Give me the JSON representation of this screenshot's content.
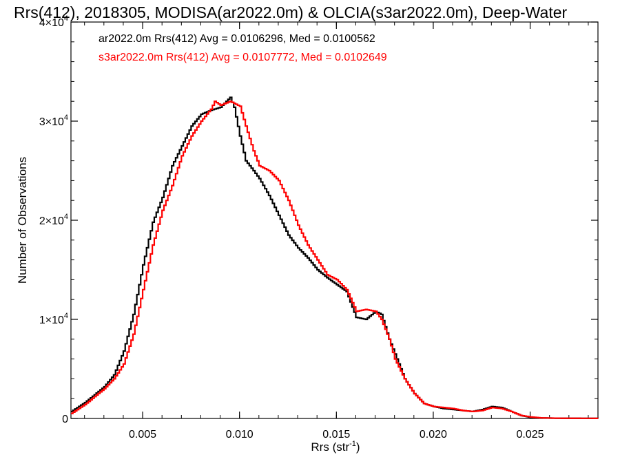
{
  "chart_data": {
    "type": "line",
    "title": "Rrs(412), 2018305, MODISA(ar2022.0m) & OLCIA(s3ar2022.0m), Deep-Water",
    "xlabel": "Rrs (str",
    "xlabel_sup": "-1",
    "xlabel_close": ")",
    "ylabel": "Number of Observations",
    "xlim": [
      0.0013,
      0.0285
    ],
    "ylim": [
      0,
      40000
    ],
    "grid": false,
    "legend_position": "top-left",
    "x_ticks": [
      {
        "value": 0.005,
        "label": "0.005"
      },
      {
        "value": 0.01,
        "label": "0.010"
      },
      {
        "value": 0.015,
        "label": "0.015"
      },
      {
        "value": 0.02,
        "label": "0.020"
      },
      {
        "value": 0.025,
        "label": "0.025"
      }
    ],
    "y_ticks": [
      {
        "value": 0,
        "label": "0",
        "exp": ""
      },
      {
        "value": 10000,
        "label": "1×10",
        "exp": "4"
      },
      {
        "value": 20000,
        "label": "2×10",
        "exp": "4"
      },
      {
        "value": 30000,
        "label": "3×10",
        "exp": "4"
      },
      {
        "value": 40000,
        "label": "4×10",
        "exp": "4"
      }
    ],
    "series": [
      {
        "name": "ar2022.0m Rrs(412) Avg = 0.0106296, Med = 0.0100562",
        "color": "#000000",
        "x": [
          0.0013,
          0.002,
          0.0025,
          0.003,
          0.0035,
          0.004,
          0.0045,
          0.005,
          0.0055,
          0.006,
          0.0065,
          0.007,
          0.0075,
          0.008,
          0.0085,
          0.009,
          0.0095,
          0.0097,
          0.01,
          0.0103,
          0.0107,
          0.011,
          0.0115,
          0.012,
          0.0125,
          0.013,
          0.0135,
          0.014,
          0.0145,
          0.015,
          0.0155,
          0.016,
          0.0165,
          0.017,
          0.0173,
          0.0177,
          0.018,
          0.0185,
          0.019,
          0.0195,
          0.02,
          0.0205,
          0.021,
          0.0215,
          0.022,
          0.0225,
          0.023,
          0.0235,
          0.024,
          0.0245,
          0.025,
          0.0255,
          0.0265,
          0.0285
        ],
        "y": [
          700,
          1600,
          2400,
          3200,
          4400,
          6800,
          10500,
          15500,
          19800,
          22300,
          25500,
          27500,
          29500,
          30700,
          31100,
          31400,
          32400,
          31400,
          28500,
          26000,
          25000,
          24200,
          22500,
          20500,
          18500,
          17200,
          16200,
          15000,
          14200,
          13500,
          12800,
          10200,
          10000,
          10800,
          10500,
          8000,
          6500,
          4000,
          2500,
          1500,
          1200,
          1000,
          900,
          800,
          700,
          900,
          1200,
          1100,
          700,
          300,
          100,
          50,
          20,
          10
        ]
      },
      {
        "name": "s3ar2022.0m Rrs(412) Avg = 0.0107772, Med = 0.0102649",
        "color": "#ff0000",
        "x": [
          0.0013,
          0.002,
          0.0025,
          0.003,
          0.0035,
          0.004,
          0.0045,
          0.005,
          0.0055,
          0.006,
          0.0065,
          0.007,
          0.0075,
          0.008,
          0.0085,
          0.0087,
          0.009,
          0.0095,
          0.01,
          0.0103,
          0.0107,
          0.011,
          0.0115,
          0.012,
          0.0125,
          0.013,
          0.0135,
          0.014,
          0.0145,
          0.015,
          0.0155,
          0.016,
          0.0165,
          0.017,
          0.0173,
          0.0177,
          0.018,
          0.0185,
          0.019,
          0.0195,
          0.02,
          0.0205,
          0.021,
          0.0215,
          0.022,
          0.0225,
          0.023,
          0.0235,
          0.024,
          0.0245,
          0.025,
          0.0255,
          0.0265,
          0.0285
        ],
        "y": [
          500,
          1400,
          2200,
          3000,
          4000,
          5500,
          8500,
          13000,
          17500,
          21000,
          23500,
          26500,
          28500,
          30000,
          31200,
          32000,
          31600,
          32000,
          31500,
          29500,
          27000,
          25500,
          25000,
          24000,
          22000,
          19500,
          17500,
          16000,
          14500,
          14000,
          13000,
          10800,
          11000,
          10800,
          10000,
          8000,
          6000,
          4000,
          2500,
          1500,
          1200,
          1100,
          1000,
          800,
          700,
          800,
          1100,
          1000,
          700,
          300,
          150,
          60,
          20,
          10
        ]
      }
    ]
  }
}
